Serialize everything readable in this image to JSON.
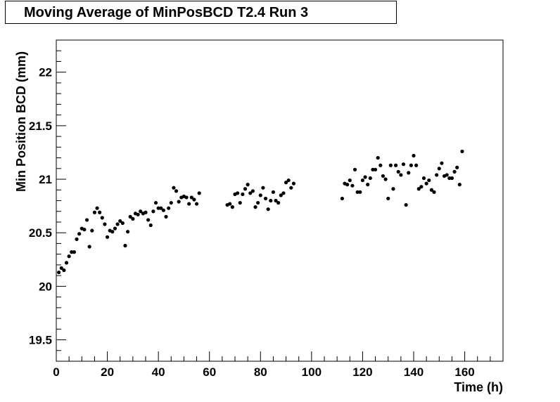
{
  "chart_data": {
    "type": "scatter",
    "title": "Moving Average of MinPosBCD T2.4 Run 3",
    "xlabel": "Time (h)",
    "ylabel": "Min Position BCD (mm)",
    "xlim": [
      0,
      175
    ],
    "ylim": [
      19.3,
      22.3
    ],
    "x_ticks": [
      0,
      20,
      40,
      60,
      80,
      100,
      120,
      140,
      160
    ],
    "y_ticks": [
      19.5,
      20,
      20.5,
      21,
      21.5,
      22
    ],
    "x_tick_labels": [
      "0",
      "20",
      "40",
      "60",
      "80",
      "100",
      "120",
      "140",
      "160"
    ],
    "y_tick_labels": [
      "19.5",
      "20",
      "20.5",
      "21",
      "21.5",
      "22"
    ],
    "grid": false,
    "legend": "none",
    "marker_color": "#000000",
    "points": [
      [
        1,
        20.13
      ],
      [
        2,
        20.17
      ],
      [
        3,
        20.15
      ],
      [
        4,
        20.22
      ],
      [
        5,
        20.28
      ],
      [
        6,
        20.32
      ],
      [
        7,
        20.32
      ],
      [
        8,
        20.44
      ],
      [
        9,
        20.49
      ],
      [
        10,
        20.54
      ],
      [
        11,
        20.53
      ],
      [
        12,
        20.62
      ],
      [
        13,
        20.37
      ],
      [
        14,
        20.52
      ],
      [
        15,
        20.69
      ],
      [
        16,
        20.73
      ],
      [
        17,
        20.69
      ],
      [
        18,
        20.64
      ],
      [
        19,
        20.58
      ],
      [
        20,
        20.46
      ],
      [
        21,
        20.52
      ],
      [
        22,
        20.51
      ],
      [
        23,
        20.54
      ],
      [
        24,
        20.58
      ],
      [
        25,
        20.61
      ],
      [
        26,
        20.59
      ],
      [
        27,
        20.38
      ],
      [
        28,
        20.51
      ],
      [
        29,
        20.65
      ],
      [
        30,
        20.63
      ],
      [
        31,
        20.68
      ],
      [
        32,
        20.67
      ],
      [
        33,
        20.7
      ],
      [
        34,
        20.68
      ],
      [
        35,
        20.69
      ],
      [
        36,
        20.62
      ],
      [
        37,
        20.57
      ],
      [
        38,
        20.7
      ],
      [
        39,
        20.78
      ],
      [
        40,
        20.73
      ],
      [
        41,
        20.73
      ],
      [
        42,
        20.71
      ],
      [
        43,
        20.65
      ],
      [
        44,
        20.73
      ],
      [
        45,
        20.78
      ],
      [
        46,
        20.92
      ],
      [
        47,
        20.89
      ],
      [
        48,
        20.79
      ],
      [
        49,
        20.83
      ],
      [
        50,
        20.84
      ],
      [
        51,
        20.83
      ],
      [
        52,
        20.77
      ],
      [
        53,
        20.83
      ],
      [
        54,
        20.81
      ],
      [
        55,
        20.77
      ],
      [
        56,
        20.87
      ],
      [
        67,
        20.76
      ],
      [
        68,
        20.77
      ],
      [
        69,
        20.74
      ],
      [
        70,
        20.86
      ],
      [
        71,
        20.87
      ],
      [
        72,
        20.78
      ],
      [
        73,
        20.86
      ],
      [
        74,
        20.91
      ],
      [
        75,
        20.95
      ],
      [
        76,
        20.87
      ],
      [
        77,
        20.89
      ],
      [
        78,
        20.74
      ],
      [
        79,
        20.78
      ],
      [
        80,
        20.85
      ],
      [
        81,
        20.92
      ],
      [
        82,
        20.82
      ],
      [
        83,
        20.72
      ],
      [
        84,
        20.8
      ],
      [
        85,
        20.88
      ],
      [
        86,
        20.8
      ],
      [
        87,
        20.78
      ],
      [
        88,
        20.85
      ],
      [
        89,
        20.87
      ],
      [
        90,
        20.97
      ],
      [
        91,
        20.99
      ],
      [
        92,
        20.92
      ],
      [
        93,
        20.96
      ],
      [
        112,
        20.82
      ],
      [
        113,
        20.96
      ],
      [
        114,
        20.95
      ],
      [
        115,
        20.99
      ],
      [
        116,
        20.94
      ],
      [
        117,
        21.09
      ],
      [
        118,
        20.88
      ],
      [
        119,
        20.88
      ],
      [
        120,
        20.99
      ],
      [
        121,
        21.02
      ],
      [
        122,
        20.95
      ],
      [
        123,
        21.01
      ],
      [
        124,
        21.09
      ],
      [
        125,
        21.09
      ],
      [
        126,
        21.2
      ],
      [
        127,
        21.13
      ],
      [
        128,
        21.03
      ],
      [
        129,
        21.0
      ],
      [
        130,
        20.82
      ],
      [
        131,
        21.13
      ],
      [
        132,
        20.91
      ],
      [
        133,
        21.13
      ],
      [
        134,
        21.07
      ],
      [
        135,
        21.04
      ],
      [
        136,
        21.14
      ],
      [
        137,
        20.76
      ],
      [
        138,
        21.06
      ],
      [
        139,
        21.13
      ],
      [
        140,
        21.22
      ],
      [
        141,
        21.13
      ],
      [
        142,
        20.91
      ],
      [
        143,
        20.93
      ],
      [
        144,
        21.01
      ],
      [
        145,
        20.96
      ],
      [
        146,
        20.99
      ],
      [
        147,
        20.9
      ],
      [
        148,
        20.88
      ],
      [
        149,
        21.04
      ],
      [
        150,
        21.1
      ],
      [
        151,
        21.15
      ],
      [
        152,
        21.03
      ],
      [
        153,
        21.04
      ],
      [
        154,
        21.01
      ],
      [
        155,
        21.01
      ],
      [
        156,
        21.07
      ],
      [
        157,
        21.11
      ],
      [
        158,
        20.95
      ],
      [
        159,
        21.26
      ]
    ]
  }
}
